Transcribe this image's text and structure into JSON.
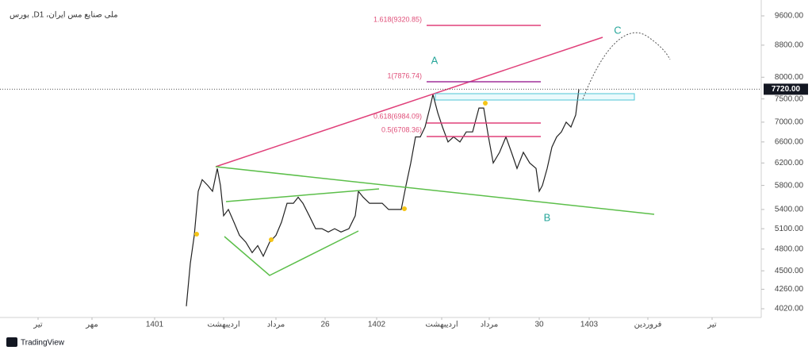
{
  "chart_data": {
    "type": "line",
    "title": "بورس ,Dملی صنایع مس ایران، 1",
    "footer": "TradingView",
    "log_scale": true,
    "grid": false,
    "xlim": [
      0,
      960
    ],
    "xticks": [
      {
        "value": 48,
        "label": "تیر"
      },
      {
        "value": 116,
        "label": "مهر"
      },
      {
        "value": 195,
        "label": "1401"
      },
      {
        "value": 282,
        "label": "اردیبهشت"
      },
      {
        "value": 348,
        "label": "مرداد"
      },
      {
        "value": 410,
        "label": "26"
      },
      {
        "value": 475,
        "label": "1402"
      },
      {
        "value": 557,
        "label": "اردیبهشت"
      },
      {
        "value": 617,
        "label": "مرداد"
      },
      {
        "value": 680,
        "label": "30"
      },
      {
        "value": 743,
        "label": "1403"
      },
      {
        "value": 817,
        "label": "فروردین"
      },
      {
        "value": 898,
        "label": "تیر"
      }
    ],
    "ylim": [
      3917,
      9946
    ],
    "yticks": [
      {
        "value": 4020,
        "label": "4020.00"
      },
      {
        "value": 4260,
        "label": "4260.00"
      },
      {
        "value": 4500,
        "label": "4500.00"
      },
      {
        "value": 4800,
        "label": "4800.00"
      },
      {
        "value": 5100,
        "label": "5100.00"
      },
      {
        "value": 5400,
        "label": "5400.00"
      },
      {
        "value": 5800,
        "label": "5800.00"
      },
      {
        "value": 6200,
        "label": "6200.00"
      },
      {
        "value": 6600,
        "label": "6600.00"
      },
      {
        "value": 7000,
        "label": "7000.00"
      },
      {
        "value": 7500,
        "label": "7500.00"
      },
      {
        "value": 8000,
        "label": "8000.00"
      },
      {
        "value": 8800,
        "label": "8800.00"
      },
      {
        "value": 9600,
        "label": "9600.00"
      }
    ],
    "last_price": {
      "value": 7720,
      "label": "7720.00"
    },
    "series": [
      {
        "color": "#222222",
        "x": [
          235,
          240,
          245,
          250,
          255,
          262,
          268,
          274,
          278,
          282,
          288,
          295,
          302,
          310,
          318,
          325,
          332,
          340,
          348,
          355,
          362,
          370,
          376,
          382,
          390,
          398,
          406,
          414,
          422,
          430,
          440,
          448,
          452,
          458,
          466,
          474,
          482,
          490,
          498,
          506,
          512,
          518,
          524,
          530,
          536,
          542,
          546,
          552,
          558,
          565,
          572,
          580,
          588,
          596,
          604,
          610,
          616,
          622,
          630,
          638,
          645,
          652,
          660,
          668,
          676,
          680,
          684,
          690,
          696,
          702,
          708,
          714,
          720,
          726,
          730
        ],
        "values": [
          4050,
          4600,
          5000,
          5700,
          5900,
          5800,
          5700,
          6100,
          5800,
          5300,
          5400,
          5200,
          5000,
          4900,
          4750,
          4850,
          4700,
          4900,
          5000,
          5200,
          5500,
          5500,
          5600,
          5500,
          5300,
          5100,
          5100,
          5050,
          5100,
          5050,
          5100,
          5300,
          5700,
          5600,
          5500,
          5500,
          5500,
          5400,
          5400,
          5400,
          5800,
          6200,
          6700,
          6700,
          6900,
          7300,
          7600,
          7200,
          6900,
          6600,
          6700,
          6600,
          6800,
          6800,
          7300,
          7300,
          6700,
          6200,
          6400,
          6700,
          6400,
          6100,
          6400,
          6200,
          6100,
          5700,
          5800,
          6100,
          6500,
          6700,
          6800,
          7000,
          6900,
          7150,
          7720
        ]
      }
    ],
    "annotations": {
      "fib_1618": "1.618(9320.85)",
      "fib_1": "1(7876.74)",
      "fib_0618": "0.618(6984.09)",
      "fib_05": "0.5(6708.36)",
      "wave_a": "A",
      "wave_b": "B",
      "wave_c": "C"
    }
  }
}
